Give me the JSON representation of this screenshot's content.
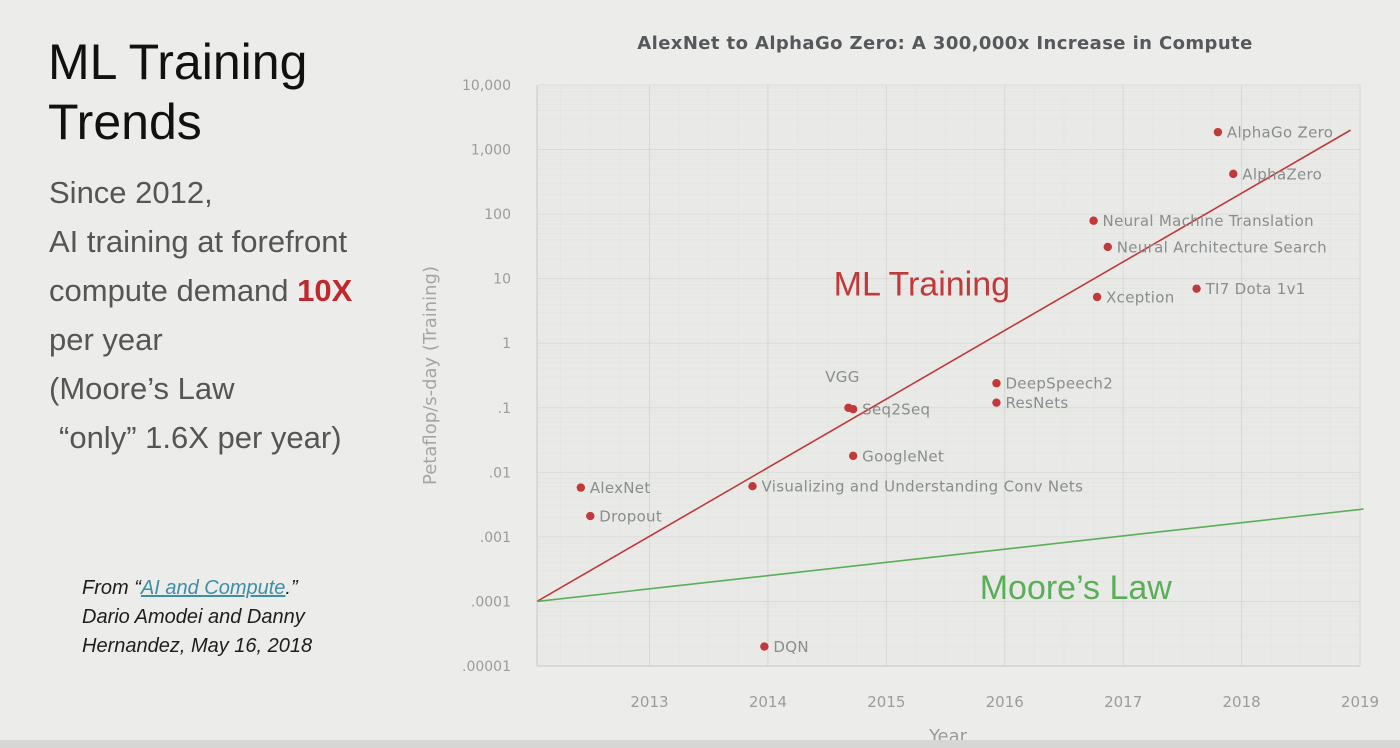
{
  "slide": {
    "title_lines": [
      "ML Training",
      "Trends"
    ],
    "body": {
      "line1": "Since 2012,",
      "line2": "AI training at forefront",
      "line3_prefix": "compute demand ",
      "line3_highlight": "10X",
      "line4": "per year",
      "line5": "(Moore’s Law",
      "line6": "“only” 1.6X per year)"
    },
    "citation": {
      "prefix": "From “",
      "link_text": "AI and Compute",
      "suffix": ".”",
      "line2": "Dario Amodei and Danny",
      "line3": "Hernandez, May 16, 2018"
    },
    "colors": {
      "highlight": "#c0282b",
      "link": "#3d8fa7",
      "ml_trend": "#c0393b",
      "moore_trend": "#5aae57",
      "point": "#c0393b"
    }
  },
  "chart_data": {
    "type": "scatter",
    "title": "AlexNet to AlphaGo Zero: A 300,000x Increase in Compute",
    "xlabel": "Year",
    "ylabel": "Petaflop/s-day (Training)",
    "yscale": "log",
    "xlim": [
      2012.05,
      2019
    ],
    "ylim": [
      1e-05,
      10000
    ],
    "grid": true,
    "xticks": [
      {
        "value": 2013,
        "label": "2013"
      },
      {
        "value": 2014,
        "label": "2014"
      },
      {
        "value": 2015,
        "label": "2015"
      },
      {
        "value": 2016,
        "label": "2016"
      },
      {
        "value": 2017,
        "label": "2017"
      },
      {
        "value": 2018,
        "label": "2018"
      },
      {
        "value": 2019,
        "label": "2019"
      }
    ],
    "yticks": [
      {
        "value": 10000,
        "label": "10,000"
      },
      {
        "value": 1000,
        "label": "1,000"
      },
      {
        "value": 100,
        "label": "100"
      },
      {
        "value": 10,
        "label": "10"
      },
      {
        "value": 1,
        "label": "1"
      },
      {
        "value": 0.1,
        "label": ".1"
      },
      {
        "value": 0.01,
        "label": ".01"
      },
      {
        "value": 0.001,
        "label": ".001"
      },
      {
        "value": 0.0001,
        "label": ".0001"
      },
      {
        "value": 1e-05,
        "label": ".00001"
      }
    ],
    "points": [
      {
        "name": "AlexNet",
        "x": 2012.42,
        "y": 0.0058
      },
      {
        "name": "Dropout",
        "x": 2012.5,
        "y": 0.0021
      },
      {
        "name": "DQN",
        "x": 2013.97,
        "y": 2e-05
      },
      {
        "name": "Visualizing and Understanding Conv Nets",
        "x": 2013.87,
        "y": 0.0061
      },
      {
        "name": "GoogleNet",
        "x": 2014.72,
        "y": 0.018
      },
      {
        "name": "VGG",
        "x": 2014.68,
        "y": 0.1,
        "label_position": "above"
      },
      {
        "name": "Seq2Seq",
        "x": 2014.72,
        "y": 0.095
      },
      {
        "name": "DeepSpeech2",
        "x": 2015.93,
        "y": 0.24
      },
      {
        "name": "ResNets",
        "x": 2015.93,
        "y": 0.12
      },
      {
        "name": "Xception",
        "x": 2016.78,
        "y": 5.2
      },
      {
        "name": "TI7 Dota 1v1",
        "x": 2017.62,
        "y": 7
      },
      {
        "name": "Neural Machine Translation",
        "x": 2016.75,
        "y": 79
      },
      {
        "name": "Neural Architecture Search",
        "x": 2016.87,
        "y": 31
      },
      {
        "name": "AlphaZero",
        "x": 2017.93,
        "y": 420
      },
      {
        "name": "AlphaGo Zero",
        "x": 2017.8,
        "y": 1860
      }
    ],
    "trend_lines": [
      {
        "name": "ML Training",
        "x": [
          2012.05,
          2018.92
        ],
        "y": [
          0.0001,
          2000
        ]
      },
      {
        "name": "Moore’s Law",
        "x": [
          2012.05,
          2019.03
        ],
        "y": [
          0.0001,
          0.0027
        ]
      }
    ],
    "annotations": [
      {
        "text": "ML Training",
        "x": 2015.3,
        "y": 5.5
      },
      {
        "text": "Moore’s Law",
        "x": 2016.6,
        "y": 0.00011
      }
    ]
  }
}
